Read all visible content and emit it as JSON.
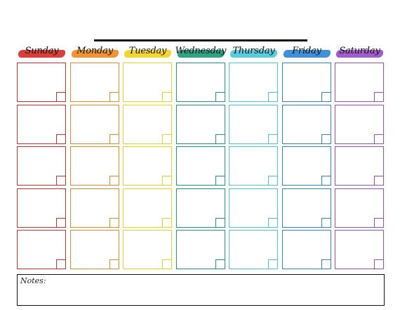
{
  "calendar": {
    "weeks": 5,
    "days": [
      {
        "label": "Sunday",
        "color": "#d6302b"
      },
      {
        "label": "Monday",
        "color": "#ee8a24"
      },
      {
        "label": "Tuesday",
        "color": "#f2d21e"
      },
      {
        "label": "Wednesday",
        "color": "#1f9a7a"
      },
      {
        "label": "Thursday",
        "color": "#4cc8d8"
      },
      {
        "label": "Friday",
        "color": "#2f86d6"
      },
      {
        "label": "Saturday",
        "color": "#9a4fc8"
      }
    ]
  },
  "notes": {
    "label": "Notes:"
  }
}
